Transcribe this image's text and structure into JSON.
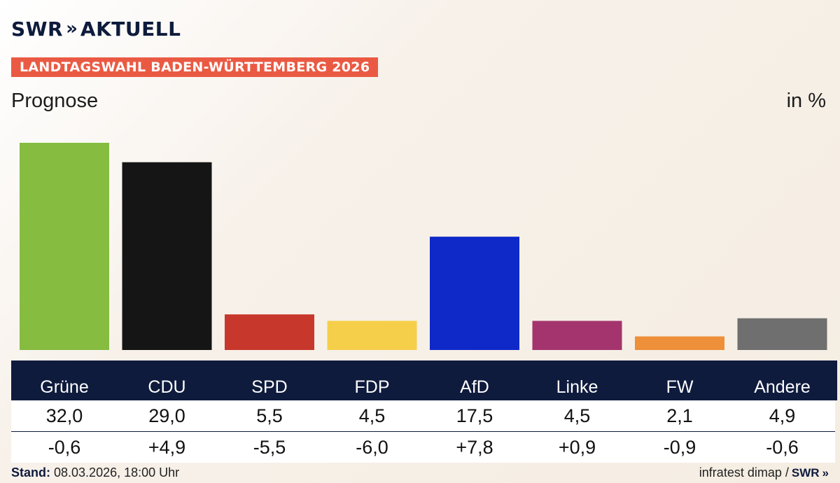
{
  "brand": {
    "name": "SWR",
    "chevrons": "»",
    "product": "AKTUELL"
  },
  "banner": "LANDTAGSWAHL BADEN-WÜRTTEMBERG 2026",
  "colors": {
    "banner": "#ea5a43",
    "navy": "#0f1b3d"
  },
  "chart_data": {
    "type": "bar",
    "subtitle": "Prognose",
    "unit": "in %",
    "categories": [
      "Grüne",
      "CDU",
      "SPD",
      "FDP",
      "AfD",
      "Linke",
      "FW",
      "Andere"
    ],
    "values": [
      32.0,
      29.0,
      5.5,
      4.5,
      17.5,
      4.5,
      2.1,
      4.9
    ],
    "value_labels": [
      "32,0",
      "29,0",
      "5,5",
      "4,5",
      "17,5",
      "4,5",
      "2,1",
      "4,9"
    ],
    "change_labels": [
      "-0,6",
      "+4,9",
      "-5,5",
      "-6,0",
      "+7,8",
      "+0,9",
      "-0,9",
      "-0,6"
    ],
    "bar_colors": [
      "#86bc40",
      "#151515",
      "#c8372b",
      "#f5cf4a",
      "#0f28c8",
      "#a4346e",
      "#ee8f3a",
      "#6f6f6f"
    ]
  },
  "footer": {
    "stand_label": "Stand:",
    "stand_value": "08.03.2026, 18:00 Uhr",
    "source": "infratest dimap /",
    "source_brand": "SWR",
    "source_chevrons": "»"
  }
}
